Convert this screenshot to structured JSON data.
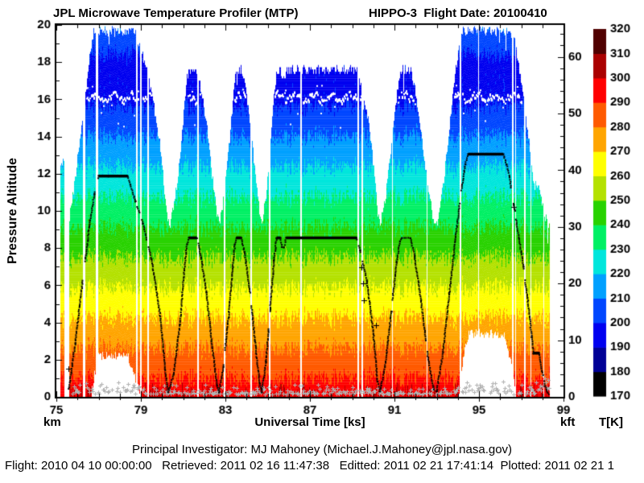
{
  "header": {
    "title_left": "JPL Microwave Temperature Profiler (MTP)",
    "title_right": "HIPPO-3  Flight Date: 20100410"
  },
  "axis": {
    "ylabel": "Pressure Altitude",
    "xlabel": "Universal Time [ks]",
    "unit_left": "km",
    "unit_right": "kft",
    "unit_cbar": "T[K]"
  },
  "footer": {
    "line1": "Principal Investigator: MJ Mahoney (Michael.J.Mahoney@jpl.nasa.gov)",
    "line2": "Flight: 2010 04 10 00:00:00   Retrieved: 2011 02 16 11:47:38   Editted: 2011 02 21 17:41:14  Plotted: 2011 02 21 1"
  },
  "chart_data": {
    "type": "heatmap",
    "title": "JPL Microwave Temperature Profiler (MTP) - HIPPO-3 Flight Date: 20100410",
    "xlabel": "Universal Time [ks]",
    "ylabel": "Pressure Altitude [km]",
    "x_min": 75,
    "x_max": 99,
    "x_tick_step": 1,
    "x_label_step": 4,
    "x_tick_labels": [
      75,
      79,
      83,
      87,
      91,
      95,
      99
    ],
    "y_min": 0,
    "y_max": 20,
    "y_tick_step": 1,
    "y_label_step": 2,
    "y_tick_labels": [
      0,
      2,
      4,
      6,
      8,
      10,
      12,
      14,
      16,
      18,
      20
    ],
    "right_axis": {
      "unit": "kft",
      "labels": [
        0,
        10,
        20,
        30,
        40,
        50,
        60
      ],
      "tick_step": 2,
      "max_tick": 64,
      "km_per_kft": 0.3048
    },
    "colorbar": {
      "unit": "T[K]",
      "min": 170,
      "max": 320,
      "step": 10,
      "labels": [
        170,
        180,
        190,
        200,
        210,
        220,
        230,
        240,
        250,
        260,
        270,
        280,
        290,
        300,
        310,
        320
      ],
      "colors": [
        "#000000",
        "#000096",
        "#0000F0",
        "#0046FF",
        "#00A0FF",
        "#00E6DC",
        "#00F064",
        "#28D200",
        "#B4E100",
        "#FFFF00",
        "#FFA500",
        "#FF5A00",
        "#FF0000",
        "#AA0000",
        "#500000"
      ]
    },
    "temperature_profile": {
      "surface_K": 296,
      "lapse_K_per_km": 6.15,
      "tropopause_km": 16.1,
      "tropopause_K": 197,
      "inversion_base_km": 17.9,
      "inversion_K_per_km": 6.5
    },
    "retrieval_window": {
      "above_km": 8.9,
      "below_km": 9.6,
      "ceiling_km": 19.55
    },
    "t_start": 75.16,
    "t_end": 98.33,
    "pre_takeoff_column": {
      "t0": 75.16,
      "t1": 75.4,
      "top_km": 12.5
    },
    "aircraft_track_t_km": [
      [
        75.55,
        0.1
      ],
      [
        75.7,
        1.3
      ],
      [
        75.9,
        2.9
      ],
      [
        76.1,
        4.9
      ],
      [
        76.35,
        7.2
      ],
      [
        76.6,
        9.5
      ],
      [
        76.8,
        10.9
      ],
      [
        77.0,
        11.87
      ],
      [
        78.38,
        11.87
      ],
      [
        78.5,
        11.4
      ],
      [
        78.75,
        10.5
      ],
      [
        79.1,
        9.3
      ],
      [
        79.5,
        7.4
      ],
      [
        79.9,
        4.5
      ],
      [
        80.15,
        1.5
      ],
      [
        80.3,
        0.25
      ],
      [
        80.55,
        1.2
      ],
      [
        80.85,
        3.9
      ],
      [
        81.05,
        6.8
      ],
      [
        81.18,
        8.2
      ],
      [
        81.28,
        8.55
      ],
      [
        81.65,
        8.55
      ],
      [
        81.85,
        7.5
      ],
      [
        82.1,
        5.6
      ],
      [
        82.35,
        3.0
      ],
      [
        82.6,
        0.6
      ],
      [
        82.7,
        0.25
      ],
      [
        82.9,
        1.6
      ],
      [
        83.15,
        4.3
      ],
      [
        83.35,
        7.0
      ],
      [
        83.45,
        8.2
      ],
      [
        83.52,
        8.55
      ],
      [
        83.75,
        8.55
      ],
      [
        83.9,
        7.8
      ],
      [
        84.15,
        5.8
      ],
      [
        84.4,
        3.0
      ],
      [
        84.62,
        0.7
      ],
      [
        84.72,
        0.25
      ],
      [
        84.92,
        1.9
      ],
      [
        85.12,
        4.7
      ],
      [
        85.3,
        7.3
      ],
      [
        85.42,
        8.55
      ],
      [
        85.6,
        8.55
      ],
      [
        85.68,
        8.05
      ],
      [
        85.78,
        8.05
      ],
      [
        85.88,
        8.55
      ],
      [
        89.2,
        8.55
      ],
      [
        89.38,
        7.9
      ],
      [
        89.7,
        6.2
      ],
      [
        90.0,
        3.4
      ],
      [
        90.2,
        0.8
      ],
      [
        90.32,
        0.3
      ],
      [
        90.55,
        1.6
      ],
      [
        90.85,
        4.6
      ],
      [
        91.1,
        7.2
      ],
      [
        91.25,
        8.35
      ],
      [
        91.35,
        8.55
      ],
      [
        91.75,
        8.55
      ],
      [
        91.95,
        7.6
      ],
      [
        92.25,
        5.2
      ],
      [
        92.6,
        2.0
      ],
      [
        92.85,
        0.4
      ],
      [
        93.0,
        0.3
      ],
      [
        93.3,
        2.4
      ],
      [
        93.6,
        5.6
      ],
      [
        93.9,
        8.6
      ],
      [
        94.15,
        11.0
      ],
      [
        94.35,
        12.5
      ],
      [
        94.5,
        13.05
      ],
      [
        96.15,
        13.05
      ],
      [
        96.3,
        12.5
      ],
      [
        96.45,
        11.8
      ],
      [
        96.65,
        10.3
      ],
      [
        96.9,
        8.5
      ],
      [
        97.1,
        7.0
      ],
      [
        97.3,
        5.3
      ],
      [
        97.5,
        3.2
      ],
      [
        97.58,
        2.35
      ],
      [
        97.85,
        2.35
      ],
      [
        97.98,
        1.4
      ],
      [
        98.12,
        0.6
      ],
      [
        98.3,
        0.12
      ]
    ],
    "cruise_plateaus_t0_t1_km": [
      [
        77.0,
        78.38,
        11.87
      ],
      [
        81.28,
        81.65,
        8.55
      ],
      [
        83.52,
        83.75,
        8.55
      ],
      [
        85.42,
        85.6,
        8.55
      ],
      [
        85.88,
        89.2,
        8.55
      ],
      [
        94.5,
        96.15,
        13.05
      ],
      [
        97.55,
        97.85,
        2.35
      ]
    ],
    "data_gaps_t_width": [
      [
        75.47,
        0.22
      ],
      [
        76.3,
        0.1
      ],
      [
        76.9,
        0.12
      ],
      [
        78.8,
        0.07
      ],
      [
        78.98,
        0.07
      ],
      [
        79.33,
        0.07
      ],
      [
        81.68,
        0.06
      ],
      [
        82.95,
        0.07
      ],
      [
        84.2,
        0.06
      ],
      [
        85.08,
        0.06
      ],
      [
        86.55,
        0.09
      ],
      [
        89.27,
        0.07
      ],
      [
        89.45,
        0.07
      ],
      [
        90.88,
        0.06
      ],
      [
        92.52,
        0.06
      ],
      [
        94.12,
        0.07
      ],
      [
        96.58,
        0.1
      ],
      [
        96.72,
        0.05
      ],
      [
        97.15,
        0.07
      ],
      [
        98.05,
        0.05
      ]
    ],
    "tropopause_trace_km": 16.1,
    "stray_marks_t_km": [
      [
        75.58,
        1.5
      ],
      [
        89.45,
        6.95
      ],
      [
        89.5,
        6.1
      ],
      [
        89.55,
        5.2
      ],
      [
        96.63,
        10.2
      ],
      [
        90.12,
        3.85
      ]
    ]
  }
}
